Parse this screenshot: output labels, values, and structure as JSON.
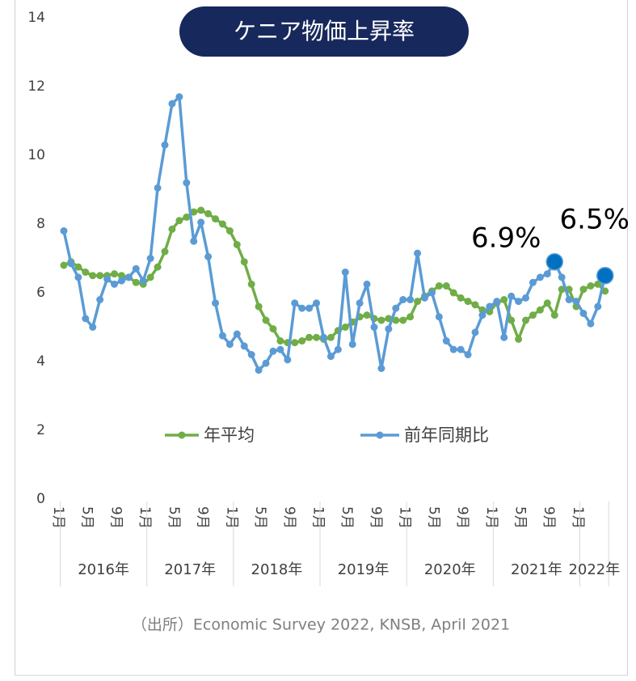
{
  "chart_data": {
    "type": "line",
    "title": "ケニア物価上昇率",
    "source": "（出所）Economic Survey 2022, KNSB, April 2021",
    "categories": [
      "1月",
      null,
      null,
      null,
      "5月",
      null,
      null,
      null,
      "9月",
      null,
      null,
      null,
      "1月",
      null,
      null,
      null,
      "5月",
      null,
      null,
      null,
      "9月",
      null,
      null,
      null,
      "1月",
      null,
      null,
      null,
      "5月",
      null,
      null,
      null,
      "9月",
      null,
      null,
      null,
      "1月",
      null,
      null,
      null,
      "5月",
      null,
      null,
      null,
      "9月",
      null,
      null,
      null,
      "1月",
      null,
      null,
      null,
      "5月",
      null,
      null,
      null,
      "9月",
      null,
      null,
      null,
      "1月",
      null,
      null,
      null,
      "5月",
      null,
      null,
      null,
      "9月",
      null,
      null,
      null,
      "1月",
      null,
      null,
      null
    ],
    "years": [
      "2016年",
      "2017年",
      "2018年",
      "2019年",
      "2020年",
      "2021年",
      "2022年"
    ],
    "ylim": [
      0,
      14
    ],
    "yticks": [
      0,
      2,
      4,
      6,
      8,
      10,
      12,
      14
    ],
    "grid": false,
    "series": [
      {
        "name": "年平均",
        "color": "#70ad47",
        "values": [
          6.8,
          6.9,
          6.75,
          6.6,
          6.5,
          6.5,
          6.5,
          6.55,
          6.5,
          6.45,
          6.3,
          6.25,
          6.45,
          6.75,
          7.2,
          7.85,
          8.1,
          8.2,
          8.35,
          8.4,
          8.3,
          8.15,
          8.0,
          7.8,
          7.4,
          6.9,
          6.25,
          5.6,
          5.2,
          4.95,
          4.6,
          4.55,
          4.55,
          4.6,
          4.7,
          4.7,
          4.65,
          4.7,
          4.9,
          5.0,
          5.15,
          5.3,
          5.35,
          5.25,
          5.2,
          5.25,
          5.2,
          5.2,
          5.3,
          5.75,
          5.9,
          6.05,
          6.2,
          6.2,
          6.0,
          5.85,
          5.75,
          5.65,
          5.5,
          5.45,
          5.7,
          5.8,
          5.2,
          4.65,
          5.2,
          5.35,
          5.5,
          5.7,
          5.35,
          6.1,
          6.1,
          5.6,
          6.1,
          6.2,
          6.25,
          6.05
        ]
      },
      {
        "name": "前年同期比",
        "color": "#5b9bd5",
        "highlight_color": "#0070c0",
        "values": [
          7.8,
          6.85,
          6.45,
          5.25,
          5.0,
          5.8,
          6.4,
          6.25,
          6.35,
          6.45,
          6.7,
          6.35,
          7.0,
          9.05,
          10.3,
          11.5,
          11.7,
          9.2,
          7.5,
          8.05,
          7.05,
          5.7,
          4.75,
          4.5,
          4.8,
          4.45,
          4.2,
          3.75,
          3.95,
          4.3,
          4.35,
          4.05,
          5.7,
          5.55,
          5.55,
          5.7,
          4.7,
          4.15,
          4.35,
          6.6,
          4.5,
          5.7,
          6.25,
          5.0,
          3.8,
          4.95,
          5.55,
          5.8,
          5.8,
          7.15,
          5.85,
          6.0,
          5.3,
          4.6,
          4.35,
          4.35,
          4.2,
          4.85,
          5.35,
          5.6,
          5.75,
          4.7,
          5.9,
          5.75,
          5.85,
          6.3,
          6.45,
          6.55,
          6.9,
          6.45,
          5.8,
          5.75,
          5.4,
          5.1,
          5.6,
          6.5
        ],
        "value_labels": [
          null,
          null,
          null,
          null,
          null,
          null,
          null,
          null,
          null,
          null,
          null,
          null,
          null,
          null,
          null,
          null,
          null,
          null,
          null,
          null,
          null,
          null,
          null,
          null,
          null,
          null,
          null,
          null,
          null,
          null,
          null,
          null,
          null,
          null,
          null,
          null,
          null,
          null,
          null,
          null,
          null,
          null,
          null,
          null,
          null,
          null,
          null,
          null,
          null,
          null,
          null,
          null,
          null,
          null,
          null,
          null,
          null,
          null,
          null,
          null,
          null,
          null,
          null,
          null,
          null,
          null,
          null,
          null,
          "6.9%",
          null,
          null,
          null,
          null,
          null,
          null,
          "6.5%"
        ]
      }
    ]
  }
}
